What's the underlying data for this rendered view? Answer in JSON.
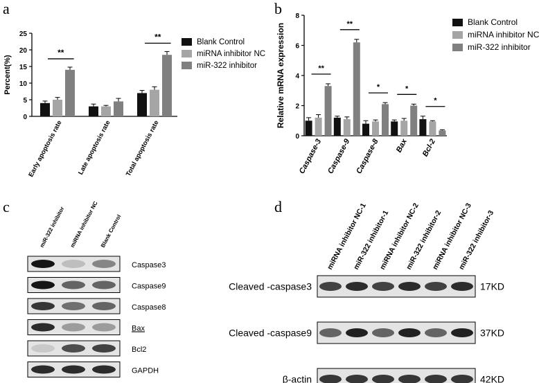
{
  "panels": {
    "a": "a",
    "b": "b",
    "c": "c",
    "d": "d"
  },
  "colors": {
    "blank_control": "#111111",
    "mirna_inhibitor_nc": "#a5a5a5",
    "mir322_inhibitor": "#808080"
  },
  "chart_data": [
    {
      "panel": "a",
      "type": "bar",
      "ylabel": "Percent(%)",
      "ylim": [
        0,
        25
      ],
      "yticks": [
        "0",
        "5",
        "10",
        "15",
        "20",
        "25"
      ],
      "categories": [
        "Early apoptosis rate",
        "Late apoptosis rate",
        "Total apoptosis rate"
      ],
      "series": [
        {
          "name": "Blank Control",
          "values": [
            4.0,
            3.0,
            7.0
          ],
          "errors": [
            0.6,
            0.7,
            0.8
          ]
        },
        {
          "name": "miRNA inhibitor NC",
          "values": [
            5.0,
            3.0,
            8.0
          ],
          "errors": [
            0.7,
            0.3,
            0.9
          ]
        },
        {
          "name": "miR-322 inhibitor",
          "values": [
            14.0,
            4.5,
            18.5
          ],
          "errors": [
            0.8,
            0.9,
            1.0
          ]
        }
      ],
      "significance": [
        {
          "category": 0,
          "label": "**"
        },
        {
          "category": 2,
          "label": "**"
        }
      ],
      "legend_position": "right"
    },
    {
      "panel": "b",
      "type": "bar",
      "ylabel": "Relative mRNA expression",
      "ylim": [
        0,
        8
      ],
      "yticks": [
        "0",
        "2",
        "4",
        "6",
        "8"
      ],
      "categories": [
        "Caspase-3",
        "Caspase-9",
        "Caspase-8",
        "Bax",
        "Bcl-2"
      ],
      "series": [
        {
          "name": "Blank Control",
          "values": [
            1.0,
            1.2,
            0.8,
            0.95,
            1.1
          ],
          "errors": [
            0.2,
            0.1,
            0.2,
            0.1,
            0.2
          ]
        },
        {
          "name": "miRNA inhibitor NC",
          "values": [
            1.2,
            1.1,
            0.95,
            1.0,
            0.95
          ],
          "errors": [
            0.2,
            0.15,
            0.1,
            0.15,
            0.05
          ]
        },
        {
          "name": "miR-322 inhibitor",
          "values": [
            3.3,
            6.2,
            2.1,
            2.0,
            0.35
          ],
          "errors": [
            0.15,
            0.2,
            0.1,
            0.1,
            0.05
          ]
        }
      ],
      "significance": [
        {
          "category": 0,
          "label": "**"
        },
        {
          "category": 1,
          "label": "**"
        },
        {
          "category": 2,
          "label": "*"
        },
        {
          "category": 3,
          "label": "*"
        },
        {
          "category": 4,
          "label": "*"
        }
      ],
      "legend_position": "right"
    }
  ],
  "blot_c": {
    "lanes": [
      "miR-322 inhibitor",
      "miRNA inhibitor NC",
      "Blank Control"
    ],
    "bands": [
      {
        "label": "Caspase3",
        "intensity": [
          0.95,
          0.2,
          0.45
        ]
      },
      {
        "label": "Caspase9",
        "intensity": [
          0.95,
          0.6,
          0.6
        ]
      },
      {
        "label": "Caspase8",
        "intensity": [
          0.8,
          0.55,
          0.6
        ]
      },
      {
        "label": "Bax",
        "intensity": [
          0.85,
          0.35,
          0.35
        ]
      },
      {
        "label": "Bcl2",
        "intensity": [
          0.15,
          0.7,
          0.75
        ]
      },
      {
        "label": "GAPDH",
        "intensity": [
          0.85,
          0.85,
          0.85
        ]
      }
    ]
  },
  "blot_d": {
    "lanes": [
      "miRNA inhibitor NC-1",
      "miR-322 inhibitor-1",
      "miRNA inhibitor NC-2",
      "miR-322 inhibitor-2",
      "miRNA inhibitor NC-3",
      "miR-322 inhibitor-3"
    ],
    "bands": [
      {
        "label": "Cleaved -caspase3",
        "size": "17KD",
        "intensity": [
          0.75,
          0.85,
          0.75,
          0.85,
          0.75,
          0.85
        ]
      },
      {
        "label": "Cleaved -caspase9",
        "size": "37KD",
        "intensity": [
          0.6,
          0.9,
          0.6,
          0.9,
          0.6,
          0.9
        ]
      },
      {
        "label": "β-actin",
        "size": "42KD",
        "intensity": [
          0.8,
          0.8,
          0.8,
          0.8,
          0.8,
          0.8
        ]
      }
    ]
  }
}
